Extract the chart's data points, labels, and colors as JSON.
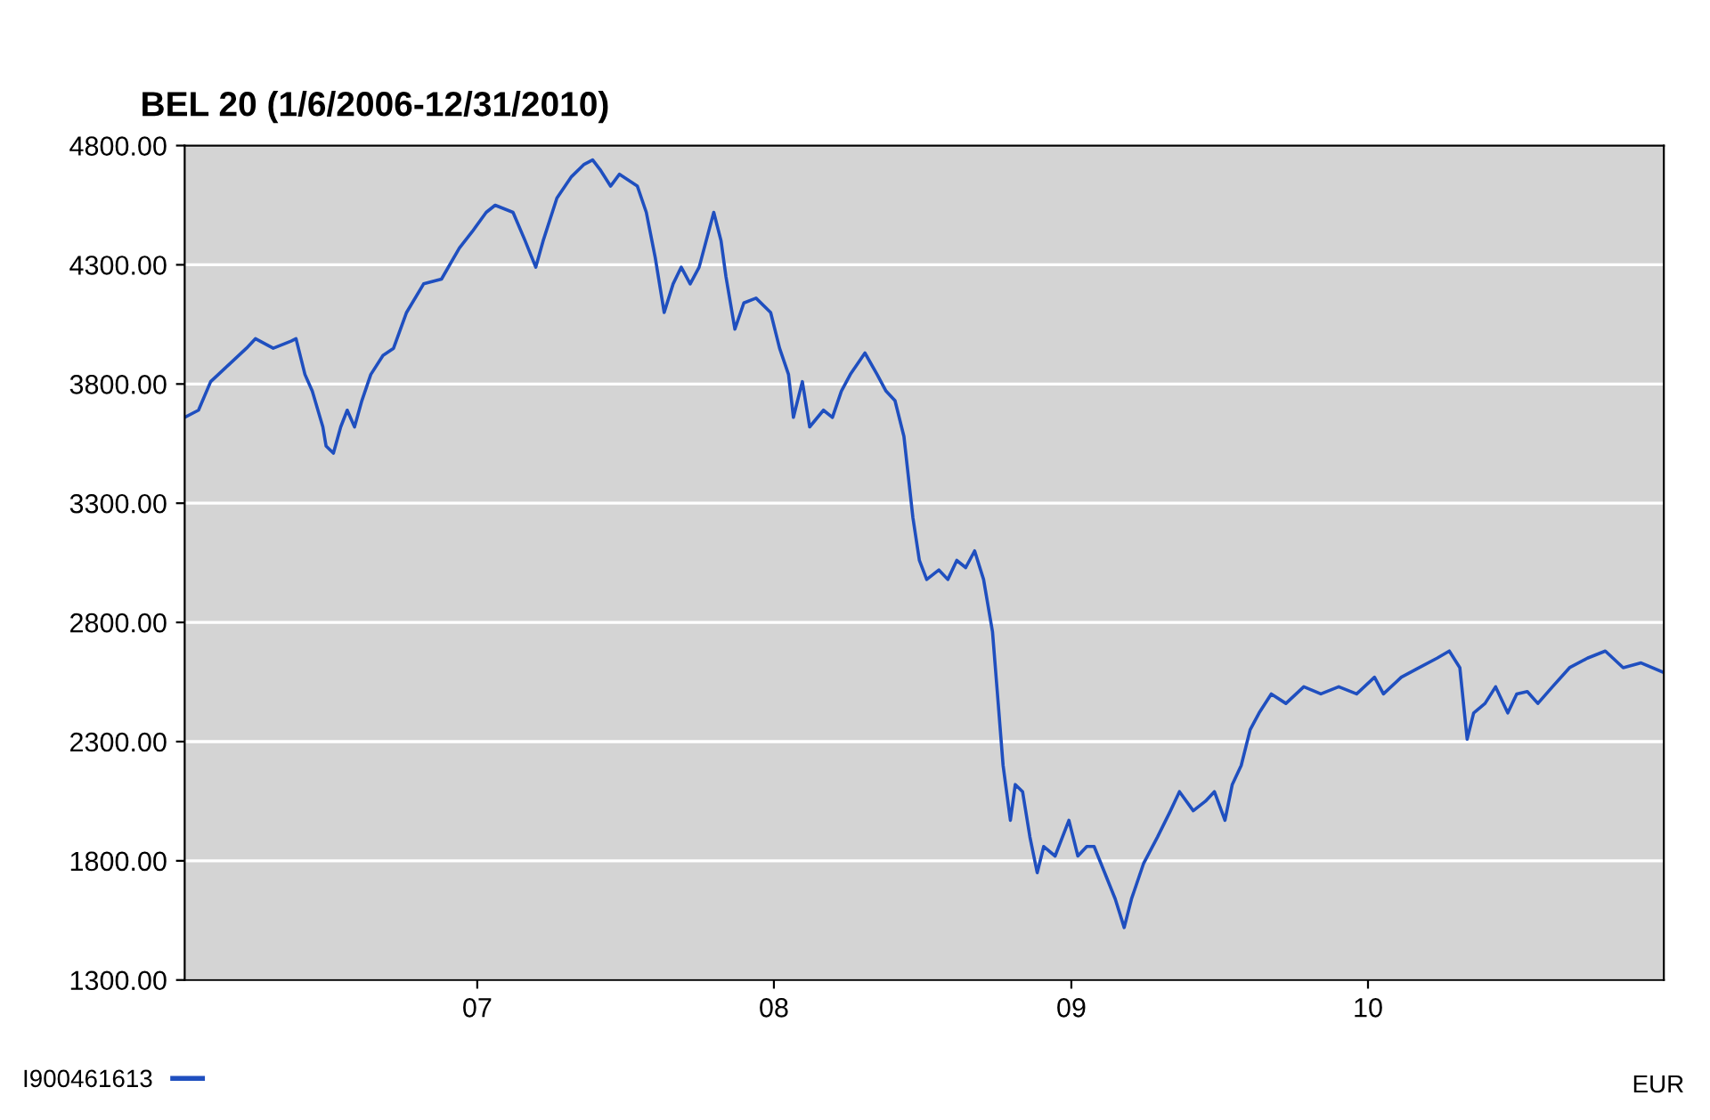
{
  "chart_data": {
    "type": "line",
    "title": "BEL 20 (1/6/2006-12/31/2010)",
    "annotations": [
      "EUR"
    ],
    "x": [
      "2006-01-06",
      "2006-01-23",
      "2006-02-07",
      "2006-03-01",
      "2006-03-23",
      "2006-04-03",
      "2006-04-25",
      "2006-05-17",
      "2006-05-23",
      "2006-06-03",
      "2006-06-12",
      "2006-06-25",
      "2006-06-29",
      "2006-07-08",
      "2006-07-17",
      "2006-07-25",
      "2006-08-03",
      "2006-08-12",
      "2006-08-23",
      "2006-09-07",
      "2006-09-20",
      "2006-10-06",
      "2006-10-27",
      "2006-11-18",
      "2006-12-10",
      "2006-12-26",
      "2007-01-12",
      "2007-01-23",
      "2007-02-14",
      "2007-03-01",
      "2007-03-14",
      "2007-03-23",
      "2007-04-09",
      "2007-04-27",
      "2007-05-12",
      "2007-05-23",
      "2007-06-01",
      "2007-06-14",
      "2007-06-25",
      "2007-07-17",
      "2007-07-28",
      "2007-08-08",
      "2007-08-19",
      "2007-08-30",
      "2007-09-09",
      "2007-09-20",
      "2007-10-01",
      "2007-10-19",
      "2007-10-28",
      "2007-11-03",
      "2007-11-14",
      "2007-11-25",
      "2007-12-10",
      "2007-12-28",
      "2008-01-08",
      "2008-01-19",
      "2008-01-25",
      "2008-02-05",
      "2008-02-14",
      "2008-03-02",
      "2008-03-13",
      "2008-03-24",
      "2008-04-04",
      "2008-04-22",
      "2008-05-07",
      "2008-05-18",
      "2008-05-29",
      "2008-06-09",
      "2008-06-20",
      "2008-06-28",
      "2008-07-07",
      "2008-07-22",
      "2008-08-02",
      "2008-08-13",
      "2008-08-24",
      "2008-09-04",
      "2008-09-15",
      "2008-09-26",
      "2008-10-03",
      "2008-10-09",
      "2008-10-18",
      "2008-10-24",
      "2008-11-02",
      "2008-11-11",
      "2008-11-20",
      "2008-11-28",
      "2008-12-12",
      "2008-12-29",
      "2009-01-09",
      "2009-01-20",
      "2009-01-29",
      "2009-02-11",
      "2009-02-24",
      "2009-03-07",
      "2009-03-16",
      "2009-03-31",
      "2009-04-17",
      "2009-05-03",
      "2009-05-14",
      "2009-05-31",
      "2009-06-15",
      "2009-06-26",
      "2009-07-09",
      "2009-07-18",
      "2009-07-29",
      "2009-08-09",
      "2009-08-20",
      "2009-09-04",
      "2009-09-22",
      "2009-10-14",
      "2009-11-04",
      "2009-11-26",
      "2009-12-18",
      "2010-01-09",
      "2010-01-20",
      "2010-02-11",
      "2010-03-05",
      "2010-03-27",
      "2010-04-11",
      "2010-04-24",
      "2010-05-03",
      "2010-05-11",
      "2010-05-25",
      "2010-06-07",
      "2010-06-22",
      "2010-07-03",
      "2010-07-16",
      "2010-07-29",
      "2010-08-16",
      "2010-09-06",
      "2010-09-28",
      "2010-10-20",
      "2010-11-11",
      "2010-12-03",
      "2010-12-31"
    ],
    "series": [
      {
        "name": "I900461613",
        "color": "#1f4fbf",
        "values": [
          3660,
          3690,
          3810,
          3880,
          3950,
          3990,
          3950,
          3980,
          3990,
          3840,
          3770,
          3620,
          3540,
          3510,
          3620,
          3690,
          3620,
          3730,
          3840,
          3920,
          3950,
          4100,
          4220,
          4240,
          4370,
          4440,
          4520,
          4550,
          4520,
          4400,
          4290,
          4400,
          4580,
          4670,
          4720,
          4740,
          4700,
          4630,
          4680,
          4630,
          4520,
          4330,
          4100,
          4220,
          4290,
          4220,
          4290,
          4520,
          4400,
          4250,
          4030,
          4140,
          4160,
          4100,
          3950,
          3840,
          3660,
          3810,
          3620,
          3690,
          3660,
          3770,
          3840,
          3930,
          3840,
          3770,
          3730,
          3580,
          3240,
          3060,
          2980,
          3020,
          2980,
          3060,
          3030,
          3100,
          2980,
          2760,
          2460,
          2200,
          1970,
          2120,
          2090,
          1900,
          1750,
          1860,
          1820,
          1970,
          1820,
          1860,
          1860,
          1750,
          1640,
          1520,
          1640,
          1790,
          1900,
          2010,
          2090,
          2010,
          2050,
          2090,
          1970,
          2120,
          2200,
          2350,
          2420,
          2500,
          2460,
          2530,
          2500,
          2530,
          2500,
          2570,
          2500,
          2570,
          2610,
          2650,
          2680,
          2610,
          2310,
          2420,
          2460,
          2530,
          2420,
          2500,
          2510,
          2460,
          2530,
          2610,
          2650,
          2680,
          2610,
          2630,
          2590
        ]
      }
    ],
    "xlim": [
      "2006-01-06",
      "2010-12-31"
    ],
    "xticks": [
      {
        "value": "2007-01-01",
        "label": "07"
      },
      {
        "value": "2008-01-01",
        "label": "08"
      },
      {
        "value": "2009-01-01",
        "label": "09"
      },
      {
        "value": "2010-01-01",
        "label": "10"
      }
    ],
    "ylim": [
      1300,
      4800
    ],
    "yticks": [
      {
        "value": 1300,
        "label": "1300.00"
      },
      {
        "value": 1800,
        "label": "1800.00"
      },
      {
        "value": 2300,
        "label": "2300.00"
      },
      {
        "value": 2800,
        "label": "2800.00"
      },
      {
        "value": 3300,
        "label": "3300.00"
      },
      {
        "value": 3800,
        "label": "3800.00"
      },
      {
        "value": 4300,
        "label": "4300.00"
      },
      {
        "value": 4800,
        "label": "4800.00"
      }
    ],
    "grid": "y",
    "legend": "bottom left",
    "line_style": "solid",
    "marker": "none"
  }
}
